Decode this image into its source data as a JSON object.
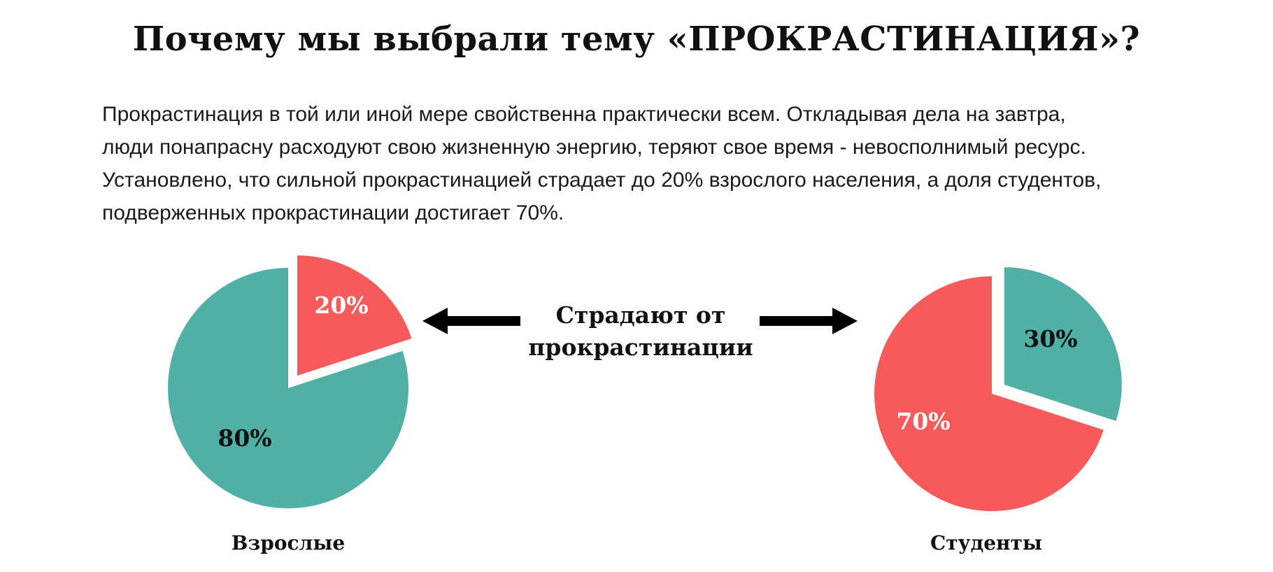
{
  "title": "Почему мы выбрали тему «ПРОКРАСТИНАЦИЯ»?",
  "paragraph": {
    "lines": [
      "Прокрастинация в той или иной мере свойственна практически всем. Откладывая дела на завтра,",
      "люди понапрасну расходуют свою жизненную энергию, теряют свое время - невосполнимый ресурс.",
      "Установлено, что сильной прокрастинацией страдает до 20% взрослого населения, а доля студентов,",
      "подверженных прокрастинации достигает 70%."
    ]
  },
  "center_label": {
    "line1": "Страдают от",
    "line2": "прокрастинации"
  },
  "colors": {
    "red": "#f65a5a",
    "teal": "#51b0a5",
    "arrow": "#000000"
  },
  "chart_data": [
    {
      "type": "pie",
      "caption": "Взрослые",
      "slices": [
        {
          "label": "20%",
          "value": 20,
          "color": "#f65a5a",
          "exploded": true,
          "text_color": "#ffffff"
        },
        {
          "label": "80%",
          "value": 80,
          "color": "#51b0a5",
          "exploded": false,
          "text_color": "#111111"
        }
      ]
    },
    {
      "type": "pie",
      "caption": "Студенты",
      "slices": [
        {
          "label": "30%",
          "value": 30,
          "color": "#51b0a5",
          "exploded": true,
          "text_color": "#111111"
        },
        {
          "label": "70%",
          "value": 70,
          "color": "#f65a5a",
          "exploded": false,
          "text_color": "#ffffff"
        }
      ]
    }
  ]
}
